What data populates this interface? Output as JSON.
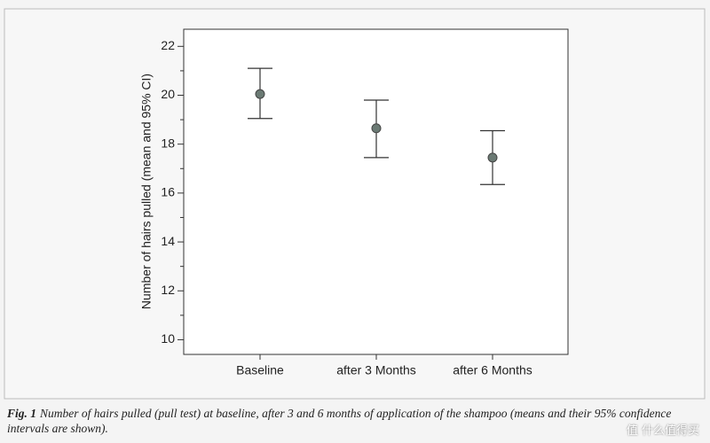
{
  "chart_data": {
    "type": "errorbar",
    "y_label": "Number of hairs pulled (mean and 95% CI)",
    "categories": [
      "Baseline",
      "after 3 Months",
      "after 6 Months"
    ],
    "values": [
      20.05,
      18.65,
      17.45
    ],
    "ci_low": [
      19.05,
      17.45,
      16.35
    ],
    "ci_high": [
      21.1,
      19.8,
      18.55
    ],
    "color": "#6b7a74",
    "ylim": [
      9.4,
      22.7
    ],
    "yticks": [
      10,
      12,
      14,
      16,
      18,
      20,
      22
    ],
    "yticks_minor": [
      11,
      13,
      15,
      17,
      19,
      21
    ]
  },
  "caption_label": "Fig. 1",
  "caption": "Number of hairs pulled (pull test) at baseline, after 3 and 6 months of application of the shampoo (means and their 95% confidence intervals are shown).",
  "watermark": "值 什么值得买"
}
